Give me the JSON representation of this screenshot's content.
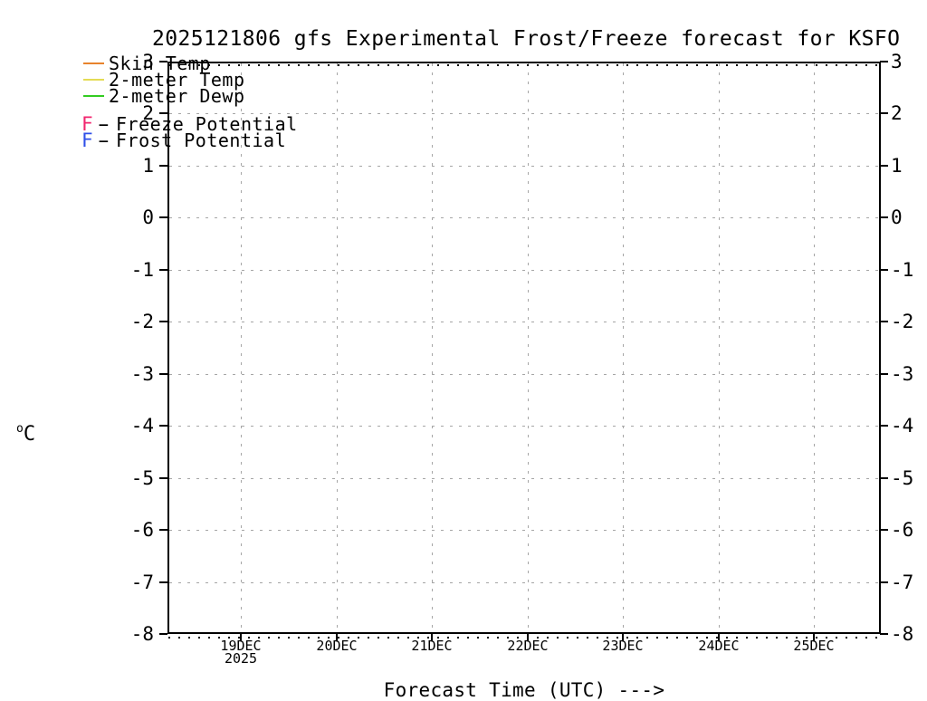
{
  "title": "2025121806 gfs Experimental Frost/Freeze forecast for KSFO",
  "legend": {
    "series": [
      {
        "label": "Skin Temp",
        "color": "#e8832c"
      },
      {
        "label": "2-meter Temp",
        "color": "#e4dc55"
      },
      {
        "label": "2-meter Dewp",
        "color": "#33cc22"
      }
    ],
    "potentials": [
      {
        "letter": "F",
        "separator": "-",
        "label": "Freeze Potential",
        "color": "#f1256e"
      },
      {
        "letter": "F",
        "separator": "-",
        "label": "Frost Potential",
        "color": "#2f4fe8"
      }
    ]
  },
  "y_axis": {
    "unit_sup": "o",
    "unit_main": "C"
  },
  "x_axis": {
    "title": "Forecast Time (UTC) --->"
  },
  "chart_data": {
    "type": "line",
    "title": "2025121806 gfs Experimental Frost/Freeze forecast for KSFO",
    "ylabel": "°C",
    "xlabel": "Forecast Time (UTC) --->",
    "ylim": [
      -8,
      3
    ],
    "y_ticks": [
      3,
      2,
      1,
      0,
      -1,
      -2,
      -3,
      -4,
      -5,
      -6,
      -7,
      -8
    ],
    "x_ticks": [
      {
        "label": "19DEC",
        "year": "2025"
      },
      {
        "label": "20DEC"
      },
      {
        "label": "21DEC"
      },
      {
        "label": "22DEC"
      },
      {
        "label": "23DEC"
      },
      {
        "label": "24DEC"
      },
      {
        "label": "25DEC"
      }
    ],
    "grid": true,
    "grid_color": "#a6a6a6",
    "axis_color": "#000000",
    "legend_position": "top-left",
    "series": [
      {
        "name": "Skin Temp",
        "color": "#e8832c",
        "values": []
      },
      {
        "name": "2-meter Temp",
        "color": "#e4dc55",
        "values": []
      },
      {
        "name": "2-meter Dewp",
        "color": "#33cc22",
        "values": []
      }
    ],
    "freeze_potential_markers": [],
    "frost_potential_markers": []
  }
}
